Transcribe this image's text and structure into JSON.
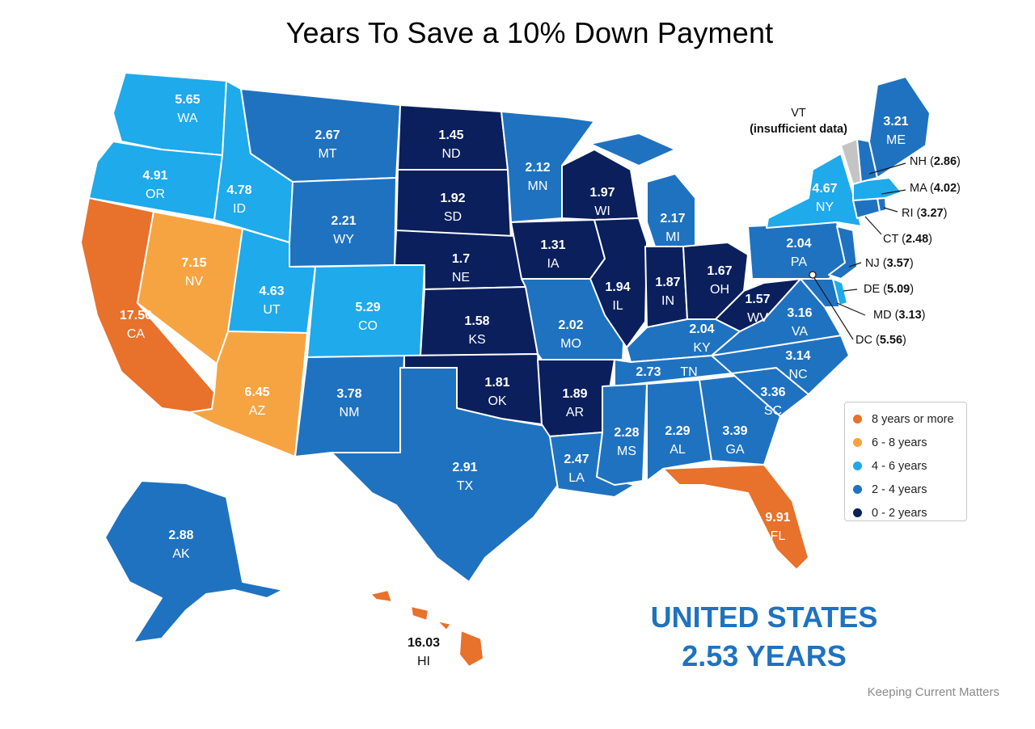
{
  "title": "Years To Save a 10% Down Payment",
  "colors": {
    "8+": "#e8712b",
    "6-8": "#f6a441",
    "4-6": "#1eaaeb",
    "2-4": "#1f72c0",
    "0-2": "#0a1f5c",
    "insufficient": "#c4c4c4"
  },
  "legend": [
    {
      "label": "8 years or more",
      "color": "#e8712b"
    },
    {
      "label": "6 - 8 years",
      "color": "#f6a441"
    },
    {
      "label": "4 - 6 years",
      "color": "#1eaaeb"
    },
    {
      "label": "2 - 4 years",
      "color": "#1f72c0"
    },
    {
      "label": "0 - 2 years",
      "color": "#0a1f5c"
    }
  ],
  "states": [
    {
      "code": "WA",
      "value": "5.65"
    },
    {
      "code": "OR",
      "value": "4.91"
    },
    {
      "code": "CA",
      "value": "17.56"
    },
    {
      "code": "NV",
      "value": "7.15"
    },
    {
      "code": "ID",
      "value": "4.78"
    },
    {
      "code": "MT",
      "value": "2.67"
    },
    {
      "code": "WY",
      "value": "2.21"
    },
    {
      "code": "UT",
      "value": "4.63"
    },
    {
      "code": "AZ",
      "value": "6.45"
    },
    {
      "code": "CO",
      "value": "5.29"
    },
    {
      "code": "NM",
      "value": "3.78"
    },
    {
      "code": "ND",
      "value": "1.45"
    },
    {
      "code": "SD",
      "value": "1.92"
    },
    {
      "code": "NE",
      "value": "1.7"
    },
    {
      "code": "KS",
      "value": "1.58"
    },
    {
      "code": "OK",
      "value": "1.81"
    },
    {
      "code": "TX",
      "value": "2.91"
    },
    {
      "code": "MN",
      "value": "2.12"
    },
    {
      "code": "IA",
      "value": "1.31"
    },
    {
      "code": "MO",
      "value": "2.02"
    },
    {
      "code": "AR",
      "value": "1.89"
    },
    {
      "code": "LA",
      "value": "2.47"
    },
    {
      "code": "WI",
      "value": "1.97"
    },
    {
      "code": "IL",
      "value": "1.94"
    },
    {
      "code": "MI",
      "value": "2.17"
    },
    {
      "code": "IN",
      "value": "1.87"
    },
    {
      "code": "OH",
      "value": "1.67"
    },
    {
      "code": "KY",
      "value": "2.04"
    },
    {
      "code": "TN",
      "value": "2.73"
    },
    {
      "code": "MS",
      "value": "2.28"
    },
    {
      "code": "AL",
      "value": "2.29"
    },
    {
      "code": "GA",
      "value": "3.39"
    },
    {
      "code": "FL",
      "value": "9.91"
    },
    {
      "code": "SC",
      "value": "3.36"
    },
    {
      "code": "NC",
      "value": "3.14"
    },
    {
      "code": "VA",
      "value": "3.16"
    },
    {
      "code": "WV",
      "value": "1.57"
    },
    {
      "code": "PA",
      "value": "2.04"
    },
    {
      "code": "NY",
      "value": "4.67"
    },
    {
      "code": "ME",
      "value": "3.21"
    },
    {
      "code": "AK",
      "value": "2.88"
    },
    {
      "code": "HI",
      "value": "16.03"
    }
  ],
  "callouts": {
    "vt_code": "VT",
    "vt_note": "(insufficient data)",
    "nh": {
      "code": "NH",
      "value": "2.86"
    },
    "ma": {
      "code": "MA",
      "value": "4.02"
    },
    "ri": {
      "code": "RI",
      "value": "3.27"
    },
    "ct": {
      "code": "CT",
      "value": "2.48"
    },
    "nj": {
      "code": "NJ",
      "value": "3.57"
    },
    "de": {
      "code": "DE",
      "value": "5.09"
    },
    "md": {
      "code": "MD",
      "value": "3.13"
    },
    "dc": {
      "code": "DC",
      "value": "5.56"
    }
  },
  "summary": {
    "line1": "UNITED STATES",
    "line2": "2.53 YEARS"
  },
  "source": "Keeping Current Matters"
}
